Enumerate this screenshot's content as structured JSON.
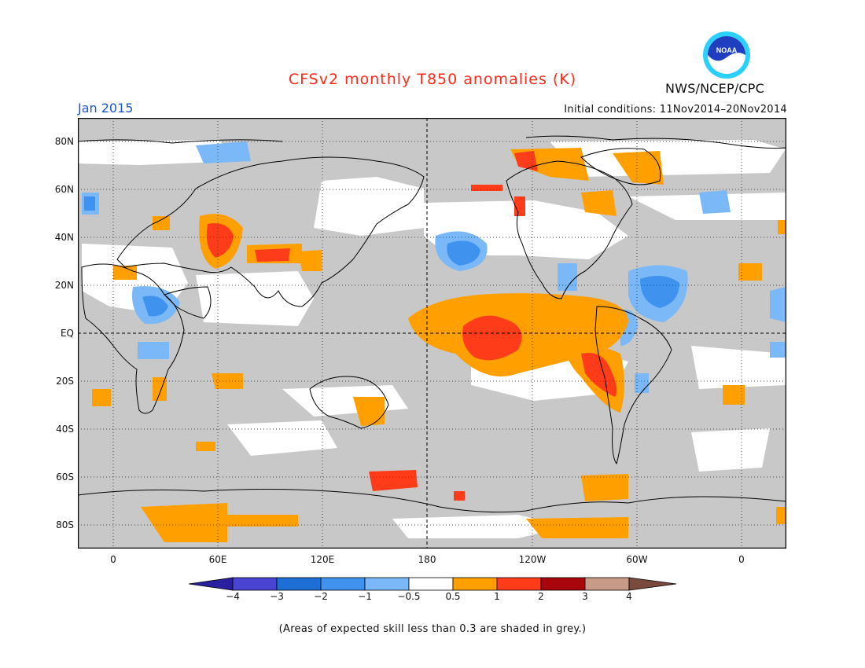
{
  "title": "CFSv2 monthly T850 anomalies (K)",
  "month_label": "Jan 2015",
  "initial_conditions": "Initial conditions: 11Nov2014–20Nov2014",
  "agency": "NWS/NCEP/CPC",
  "logo": {
    "text": "NOAA",
    "icon": "noaa-logo"
  },
  "footnote": "(Areas of expected skill less than 0.3 are shaded in grey.)",
  "map": {
    "lon_labels": [
      "0",
      "60E",
      "120E",
      "180",
      "120W",
      "60W",
      "0"
    ],
    "lat_labels": [
      "80N",
      "60N",
      "40N",
      "20N",
      "EQ",
      "20S",
      "40S",
      "60S",
      "80S"
    ],
    "colors": {
      "skill_grey": "#c8c8c8",
      "ocean_white": "#ffffff",
      "coast": "#000000"
    }
  },
  "colorbar": {
    "labels": [
      "−4",
      "−3",
      "−2",
      "−1",
      "−0.5",
      "0.5",
      "1",
      "2",
      "3",
      "4"
    ],
    "colors": [
      "#2a1fa0",
      "#4a44d2",
      "#1d6fd6",
      "#3f93ee",
      "#7ab8f7",
      "#ffffff",
      "#ff9f00",
      "#ff3c1a",
      "#a8060c",
      "#c89a88",
      "#7a4a3c"
    ]
  }
}
